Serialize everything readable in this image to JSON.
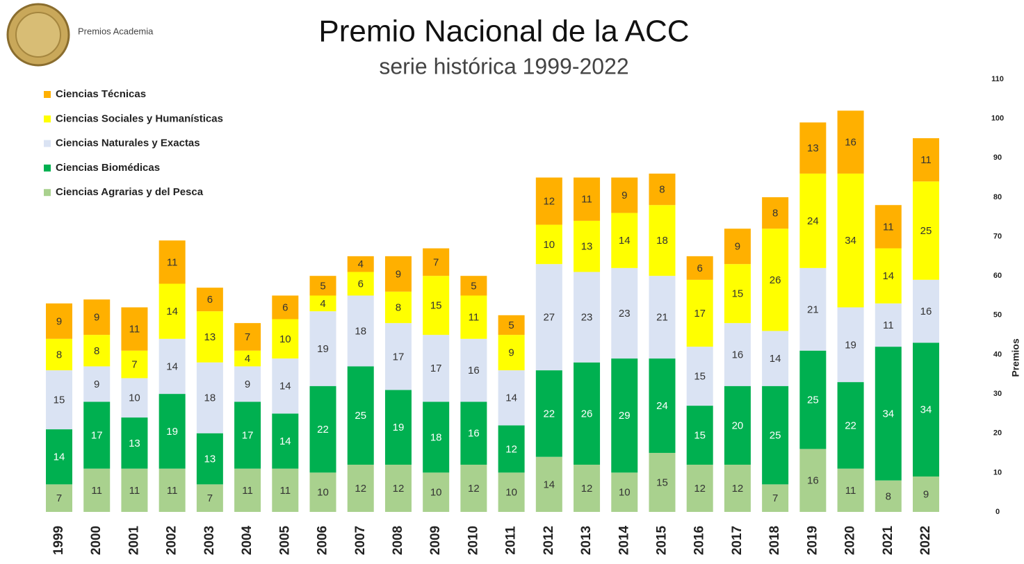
{
  "chart_data": {
    "type": "bar",
    "stacked": true,
    "title": "Premio Nacional de la ACC",
    "subtitle": "serie histórica 1999-2022",
    "logo_text": "Premios Academia",
    "y_axis_label": "Premios",
    "categories": [
      "1999",
      "2000",
      "2001",
      "2002",
      "2003",
      "2004",
      "2005",
      "2006",
      "2007",
      "2008",
      "2009",
      "2010",
      "2011",
      "2012",
      "2013",
      "2014",
      "2015",
      "2016",
      "2017",
      "2018",
      "2019",
      "2020",
      "2021",
      "2022"
    ],
    "series": [
      {
        "name": "Ciencias Agrarias y del Pesca",
        "color": "#a9d18e",
        "values": [
          7,
          11,
          11,
          11,
          7,
          11,
          11,
          10,
          12,
          12,
          10,
          12,
          10,
          14,
          12,
          10,
          15,
          12,
          12,
          7,
          16,
          11,
          8,
          9
        ]
      },
      {
        "name": "Ciencias Biomédicas",
        "color": "#00b050",
        "values": [
          14,
          17,
          13,
          19,
          13,
          17,
          14,
          22,
          25,
          19,
          18,
          16,
          12,
          22,
          26,
          29,
          24,
          15,
          20,
          25,
          25,
          22,
          34,
          34
        ]
      },
      {
        "name": "Ciencias Naturales y Exactas",
        "color": "#dae3f3",
        "values": [
          15,
          9,
          10,
          14,
          18,
          9,
          14,
          19,
          18,
          17,
          17,
          16,
          14,
          27,
          23,
          23,
          21,
          15,
          16,
          14,
          21,
          19,
          11,
          16
        ]
      },
      {
        "name": "Ciencias Sociales y Humanísticas",
        "color": "#ffff00",
        "values": [
          8,
          8,
          7,
          14,
          13,
          4,
          10,
          4,
          6,
          8,
          15,
          11,
          9,
          10,
          13,
          14,
          18,
          17,
          15,
          26,
          24,
          34,
          14,
          25
        ]
      },
      {
        "name": "Ciencias Técnicas",
        "color": "#ffb000",
        "values": [
          9,
          9,
          11,
          11,
          6,
          7,
          6,
          5,
          4,
          9,
          7,
          5,
          5,
          12,
          11,
          9,
          8,
          6,
          9,
          8,
          13,
          16,
          11,
          11
        ]
      }
    ],
    "ylim": [
      0,
      110
    ],
    "yticks": [
      0,
      10,
      20,
      30,
      40,
      50,
      60,
      70,
      80,
      90,
      100,
      110
    ],
    "grid": false,
    "legend": "top-left"
  }
}
